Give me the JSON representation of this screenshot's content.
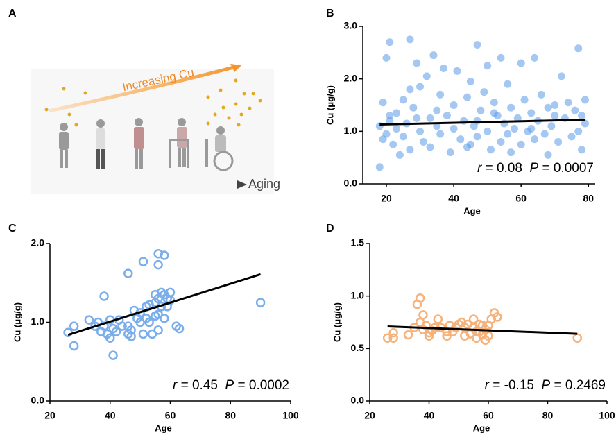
{
  "illustration": {
    "label": "A",
    "arrow_text": "Increasing Cu",
    "axis_text": "Aging"
  },
  "chart_data": [
    {
      "type": "scatter",
      "label": "B",
      "x_label": "Age",
      "y_label": "Cu (μg/g)",
      "xlim": [
        13,
        82
      ],
      "ylim": [
        0,
        3
      ],
      "xticks": [
        20,
        40,
        60,
        80
      ],
      "yticks": [
        {
          "value": 0,
          "label": "0.0"
        },
        {
          "value": 1,
          "label": "1.0"
        },
        {
          "value": 2,
          "label": "2.0"
        },
        {
          "value": 3,
          "label": "3.0"
        }
      ],
      "hollow": false,
      "series": [
        {
          "color": "#5b9be8",
          "x": [
            18,
            18,
            19,
            19,
            20,
            20,
            21,
            21,
            22,
            23,
            23,
            24,
            25,
            25,
            26,
            27,
            27,
            28,
            29,
            30,
            30,
            31,
            32,
            33,
            33,
            34,
            35,
            36,
            36,
            37,
            38,
            39,
            40,
            40,
            41,
            42,
            43,
            44,
            44,
            45,
            46,
            47,
            47,
            48,
            49,
            50,
            50,
            51,
            52,
            53,
            54,
            54,
            55,
            56,
            57,
            57,
            58,
            59,
            60,
            60,
            61,
            62,
            63,
            64,
            64,
            65,
            66,
            67,
            68,
            68,
            69,
            70,
            71,
            72,
            73,
            74,
            75,
            76,
            77,
            77,
            78,
            78,
            79,
            79,
            27,
            47,
            35,
            56,
            63,
            21,
            29,
            45,
            52,
            70
          ],
          "values": [
            0.32,
            1.1,
            0.85,
            1.55,
            0.95,
            2.4,
            1.2,
            2.7,
            0.75,
            1.35,
            1.05,
            0.55,
            1.6,
            0.9,
            1.15,
            2.75,
            0.65,
            1.45,
            2.3,
            1.0,
            1.85,
            0.8,
            2.05,
            1.25,
            0.7,
            2.45,
            1.1,
            0.95,
            1.7,
            2.2,
            1.3,
            0.6,
            1.5,
            1.05,
            2.15,
            0.85,
            1.2,
            1.65,
            0.7,
            1.95,
            1.1,
            2.65,
            0.9,
            1.4,
            1.75,
            1.0,
            2.25,
            0.65,
            1.55,
            1.3,
            2.4,
            0.8,
            1.15,
            1.9,
            1.45,
            0.6,
            1.05,
            1.25,
            2.3,
            0.75,
            1.6,
            1.0,
            1.35,
            2.4,
            0.85,
            1.2,
            1.7,
            0.95,
            1.45,
            0.55,
            1.1,
            1.3,
            0.8,
            2.05,
            1.25,
            1.55,
            0.9,
            1.4,
            2.58,
            1.0,
            1.3,
            0.65,
            1.15,
            1.6,
            1.8,
            1.2,
            1.4,
            0.95,
            1.05,
            1.3,
            1.25,
            0.75,
            1.35,
            1.5
          ]
        }
      ],
      "fit": {
        "x": [
          18,
          79
        ],
        "y": [
          1.13,
          1.22
        ]
      },
      "stats": [
        {
          "symbol": "r",
          "text": " = 0.08  "
        },
        {
          "symbol": "P",
          "text": " = 0.0007"
        }
      ]
    },
    {
      "type": "scatter",
      "label": "C",
      "x_label": "Age",
      "y_label": "Cu (μg/g)",
      "xlim": [
        20,
        100
      ],
      "ylim": [
        0,
        2
      ],
      "xticks": [
        20,
        40,
        60,
        80,
        100
      ],
      "yticks": [
        {
          "value": 0,
          "label": "0.0"
        },
        {
          "value": 1,
          "label": "1.0"
        },
        {
          "value": 2,
          "label": "2.0"
        }
      ],
      "hollow": true,
      "series": [
        {
          "color": "#7aaeea",
          "x": [
            26,
            28,
            28,
            33,
            35,
            36,
            37,
            38,
            38,
            39,
            40,
            40,
            41,
            41,
            42,
            43,
            44,
            46,
            46,
            46,
            47,
            47,
            48,
            49,
            50,
            50,
            51,
            51,
            52,
            52,
            53,
            53,
            54,
            55,
            55,
            55,
            56,
            56,
            56,
            56,
            56,
            57,
            57,
            58,
            58,
            58,
            59,
            59,
            60,
            60,
            62,
            63,
            90
          ],
          "values": [
            0.87,
            0.95,
            0.7,
            1.03,
            0.95,
            1.0,
            0.88,
            1.33,
            0.95,
            0.85,
            0.8,
            1.03,
            0.92,
            0.58,
            0.88,
            1.03,
            0.95,
            1.62,
            0.95,
            0.85,
            0.9,
            0.82,
            1.15,
            1.05,
            1.12,
            1.0,
            1.77,
            0.85,
            1.2,
            1.05,
            1.22,
            1.0,
            0.85,
            1.35,
            1.25,
            1.08,
            1.87,
            1.73,
            1.3,
            1.1,
            0.9,
            1.38,
            1.2,
            1.85,
            1.35,
            1.05,
            1.3,
            1.2,
            1.38,
            1.28,
            0.95,
            0.92,
            1.25
          ]
        }
      ],
      "fit": {
        "x": [
          26,
          90
        ],
        "y": [
          0.84,
          1.61
        ]
      },
      "stats": [
        {
          "symbol": "r",
          "text": " = 0.45  "
        },
        {
          "symbol": "P",
          "text": " = 0.0002"
        }
      ]
    },
    {
      "type": "scatter",
      "label": "D",
      "x_label": "Age",
      "y_label": "Cu (μg/g)",
      "xlim": [
        20,
        100
      ],
      "ylim": [
        0,
        1.5
      ],
      "xticks": [
        20,
        40,
        60,
        80,
        100
      ],
      "yticks": [
        {
          "value": 0,
          "label": "0.0"
        },
        0.5,
        {
          "value": 1,
          "label": "1.0"
        },
        1.5
      ],
      "hollow": true,
      "series": [
        {
          "color": "#f5b27a",
          "x": [
            26,
            28,
            28,
            33,
            35,
            36,
            37,
            37,
            38,
            38,
            39,
            40,
            40,
            41,
            42,
            43,
            44,
            46,
            46,
            47,
            48,
            49,
            50,
            51,
            52,
            52,
            53,
            54,
            55,
            55,
            56,
            56,
            57,
            57,
            58,
            58,
            59,
            59,
            60,
            60,
            61,
            62,
            63,
            90
          ],
          "values": [
            0.6,
            0.65,
            0.6,
            0.63,
            0.7,
            0.92,
            0.98,
            0.75,
            0.82,
            0.68,
            0.72,
            0.65,
            0.62,
            0.67,
            0.7,
            0.78,
            0.7,
            0.62,
            0.66,
            0.72,
            0.66,
            0.7,
            0.73,
            0.75,
            0.62,
            0.7,
            0.73,
            0.64,
            0.7,
            0.78,
            0.66,
            0.6,
            0.73,
            0.66,
            0.63,
            0.72,
            0.58,
            0.68,
            0.62,
            0.72,
            0.78,
            0.84,
            0.8,
            0.6
          ]
        }
      ],
      "fit": {
        "x": [
          26,
          90
        ],
        "y": [
          0.71,
          0.64
        ]
      },
      "stats": [
        {
          "symbol": "r",
          "text": " = -0.15  "
        },
        {
          "symbol": "P",
          "text": " = 0.2469"
        }
      ]
    }
  ]
}
